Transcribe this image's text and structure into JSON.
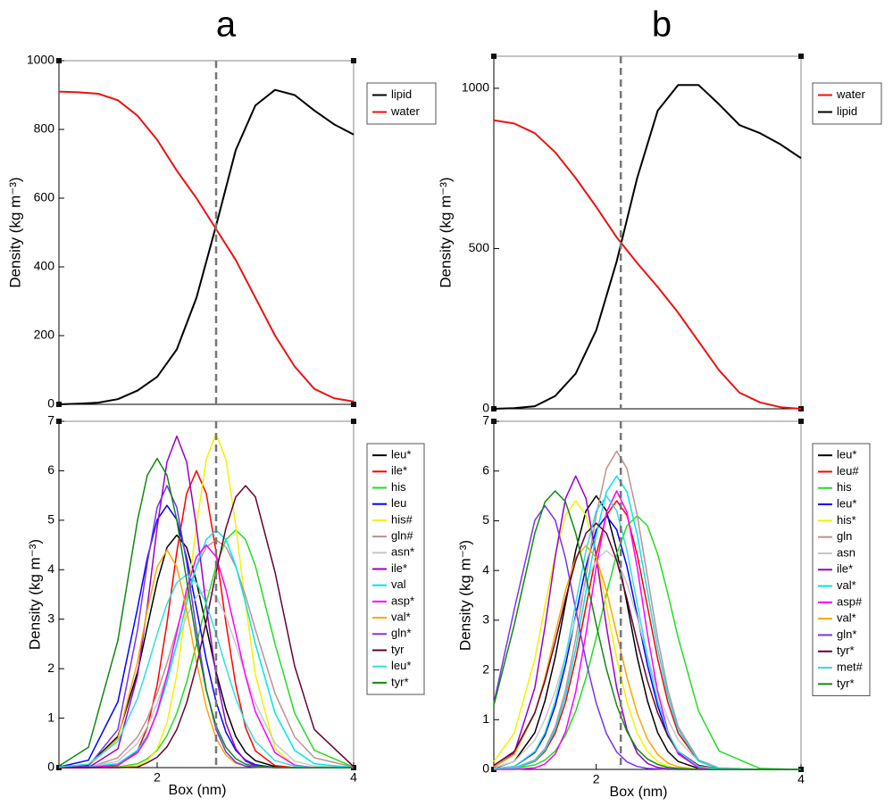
{
  "chart_data": [
    {
      "type": "line",
      "title": "a",
      "ylabel": "Density (kg m⁻³)",
      "xlim": [
        1,
        4
      ],
      "ylim": [
        0,
        1000
      ],
      "yticks": [
        0,
        200,
        400,
        600,
        800,
        1000
      ],
      "vline": 2.6,
      "x": [
        1.0,
        1.2,
        1.4,
        1.6,
        1.8,
        2.0,
        2.2,
        2.4,
        2.6,
        2.8,
        3.0,
        3.2,
        3.4,
        3.6,
        3.8,
        4.0
      ],
      "series": [
        {
          "name": "lipid",
          "color": "#000000",
          "values": [
            0,
            2,
            5,
            15,
            40,
            80,
            160,
            310,
            520,
            740,
            870,
            915,
            900,
            855,
            815,
            785
          ]
        },
        {
          "name": "water",
          "color": "#ee1111",
          "values": [
            910,
            908,
            904,
            885,
            840,
            770,
            680,
            600,
            510,
            420,
            310,
            200,
            110,
            45,
            18,
            8
          ]
        }
      ]
    },
    {
      "type": "line",
      "ylabel": "Density (kg m⁻³)",
      "xlabel": "Box (nm)",
      "xlim": [
        1,
        4
      ],
      "ylim": [
        0,
        7
      ],
      "yticks": [
        0,
        1,
        2,
        3,
        4,
        5,
        6,
        7
      ],
      "xticks": [
        2,
        4
      ],
      "vline": 2.6,
      "x": [
        1.0,
        1.3,
        1.6,
        1.8,
        1.9,
        2.0,
        2.1,
        2.2,
        2.3,
        2.4,
        2.5,
        2.6,
        2.7,
        2.8,
        2.9,
        3.0,
        3.2,
        3.4,
        3.6,
        4.0
      ],
      "series": [
        {
          "name": "leu*",
          "color": "#000000",
          "values": [
            0,
            0.05,
            0.63,
            1.93,
            2.85,
            3.76,
            4.45,
            4.7,
            4.45,
            3.76,
            2.85,
            1.93,
            1.18,
            0.63,
            0.31,
            0.14,
            0.02,
            0,
            0,
            0
          ]
        },
        {
          "name": "ile*",
          "color": "#ff0000",
          "values": [
            0,
            0,
            0.04,
            0.34,
            0.81,
            1.67,
            2.92,
            4.36,
            5.54,
            6.0,
            5.54,
            4.36,
            2.92,
            1.67,
            0.81,
            0.34,
            0.04,
            0,
            0,
            0
          ]
        },
        {
          "name": "his",
          "color": "#22dd22",
          "values": [
            0,
            0,
            0.01,
            0.08,
            0.18,
            0.35,
            0.65,
            1.1,
            1.73,
            2.5,
            3.33,
            4.08,
            4.61,
            4.8,
            4.61,
            4.08,
            2.5,
            1.1,
            0.35,
            0.01
          ]
        },
        {
          "name": "leu",
          "color": "#0000ff",
          "values": [
            0.01,
            0.15,
            1.33,
            3.22,
            4.24,
            5.01,
            5.3,
            5.01,
            4.24,
            3.22,
            2.18,
            1.33,
            0.72,
            0.35,
            0.15,
            0.06,
            0,
            0,
            0,
            0
          ]
        },
        {
          "name": "his#",
          "color": "#f2f200",
          "values": [
            0,
            0,
            0,
            0.04,
            0.14,
            0.38,
            0.91,
            1.88,
            3.29,
            4.9,
            6.23,
            6.75,
            6.23,
            4.9,
            3.29,
            1.88,
            0.38,
            0.04,
            0,
            0
          ]
        },
        {
          "name": "gln#",
          "color": "#c09090",
          "values": [
            0,
            0,
            0.2,
            0.62,
            0.99,
            1.5,
            2.11,
            2.79,
            3.47,
            4.06,
            4.46,
            4.6,
            4.46,
            4.06,
            3.47,
            2.79,
            1.5,
            0.62,
            0.2,
            0.01
          ]
        },
        {
          "name": "asn*",
          "color": "#c8c8c8",
          "values": [
            0,
            0.01,
            0.13,
            0.49,
            0.83,
            1.3,
            1.87,
            2.49,
            3.06,
            3.46,
            3.6,
            3.46,
            3.06,
            2.49,
            1.87,
            1.3,
            0.49,
            0.13,
            0.03,
            0
          ]
        },
        {
          "name": "ile*",
          "color": "#9900cc",
          "values": [
            0,
            0,
            0.38,
            1.86,
            3.26,
            4.86,
            6.18,
            6.7,
            6.18,
            4.86,
            3.26,
            1.86,
            0.9,
            0.38,
            0.13,
            0.04,
            0,
            0,
            0,
            0
          ]
        },
        {
          "name": "val",
          "color": "#00e5ee",
          "values": [
            0,
            0.01,
            0.08,
            0.35,
            0.65,
            1.1,
            1.73,
            2.5,
            3.33,
            4.08,
            4.61,
            4.8,
            4.61,
            4.08,
            3.33,
            2.5,
            1.1,
            0.35,
            0.08,
            0
          ]
        },
        {
          "name": "asp*",
          "color": "#ff00ff",
          "values": [
            0,
            0,
            0.05,
            0.3,
            0.61,
            1.13,
            1.85,
            2.73,
            3.6,
            4.26,
            4.5,
            4.26,
            3.6,
            2.73,
            1.85,
            1.13,
            0.3,
            0.05,
            0,
            0
          ]
        },
        {
          "name": "val*",
          "color": "#ffa500",
          "values": [
            0,
            0.03,
            0.59,
            2.14,
            3.19,
            4.06,
            4.4,
            4.06,
            3.19,
            2.14,
            1.22,
            0.59,
            0.25,
            0.09,
            0.03,
            0.01,
            0,
            0,
            0,
            0
          ]
        },
        {
          "name": "gln*",
          "color": "#7733ee",
          "values": [
            0,
            0.03,
            0.77,
            2.78,
            4.14,
            5.26,
            5.7,
            5.26,
            4.14,
            2.78,
            1.58,
            0.77,
            0.32,
            0.11,
            0.03,
            0.01,
            0,
            0,
            0,
            0
          ]
        },
        {
          "name": "tyr",
          "color": "#660033",
          "values": [
            0,
            0,
            0,
            0.01,
            0.1,
            0.21,
            0.42,
            0.77,
            1.31,
            2.05,
            2.96,
            3.95,
            4.84,
            5.47,
            5.7,
            5.47,
            3.95,
            2.05,
            0.77,
            0.02
          ]
        },
        {
          "name": "leu*",
          "color": "#33dddd",
          "values": [
            0.01,
            0.07,
            0.53,
            1.4,
            2.03,
            2.7,
            3.31,
            3.74,
            3.9,
            3.74,
            3.31,
            2.7,
            2.03,
            1.4,
            0.9,
            0.53,
            0.14,
            0.03,
            0,
            0
          ]
        },
        {
          "name": "tyr*",
          "color": "#118811",
          "values": [
            0.03,
            0.41,
            2.57,
            5.0,
            5.91,
            6.25,
            5.91,
            5.0,
            3.79,
            2.57,
            1.56,
            0.84,
            0.41,
            0.18,
            0.07,
            0.03,
            0,
            0,
            0,
            0
          ]
        }
      ]
    },
    {
      "type": "line",
      "title": "b",
      "ylabel": "Density (kg m⁻³)",
      "xlim": [
        1,
        4
      ],
      "ylim": [
        0,
        1100
      ],
      "yticks": [
        0,
        500,
        1000
      ],
      "vline": 2.24,
      "x": [
        1.0,
        1.2,
        1.4,
        1.6,
        1.8,
        2.0,
        2.2,
        2.4,
        2.6,
        2.8,
        3.0,
        3.2,
        3.4,
        3.6,
        3.8,
        4.0
      ],
      "series": [
        {
          "name": "water",
          "color": "#ee1111",
          "values": [
            900,
            890,
            860,
            800,
            720,
            630,
            535,
            455,
            380,
            300,
            210,
            120,
            50,
            20,
            5,
            0
          ]
        },
        {
          "name": "lipid",
          "color": "#000000",
          "values": [
            0,
            2,
            8,
            40,
            110,
            245,
            460,
            720,
            930,
            1010,
            1010,
            950,
            885,
            860,
            825,
            782
          ]
        }
      ]
    },
    {
      "type": "line",
      "ylabel": "Density (kg m⁻³)",
      "xlabel": "Box (nm)",
      "xlim": [
        1,
        4
      ],
      "ylim": [
        0,
        7
      ],
      "yticks": [
        0,
        1,
        2,
        3,
        4,
        5,
        6,
        7
      ],
      "xticks": [
        2,
        4
      ],
      "vline": 2.24,
      "x": [
        1.0,
        1.2,
        1.4,
        1.5,
        1.6,
        1.7,
        1.8,
        1.9,
        2.0,
        2.1,
        2.2,
        2.3,
        2.4,
        2.5,
        2.6,
        2.7,
        2.8,
        3.0,
        3.2,
        3.6,
        4.0
      ],
      "series": [
        {
          "name": "leu*",
          "color": "#000000",
          "values": [
            0.02,
            0.16,
            0.74,
            1.38,
            2.26,
            3.34,
            4.4,
            5.2,
            5.5,
            5.2,
            4.4,
            3.34,
            2.26,
            1.38,
            0.74,
            0.36,
            0.16,
            0.02,
            0,
            0,
            0
          ]
        },
        {
          "name": "leu#",
          "color": "#ff0000",
          "values": [
            0,
            0.02,
            0.16,
            0.36,
            0.73,
            1.35,
            2.22,
            3.28,
            4.32,
            5.11,
            5.4,
            5.11,
            4.32,
            3.28,
            2.22,
            1.35,
            0.73,
            0.16,
            0.02,
            0,
            0
          ]
        },
        {
          "name": "his",
          "color": "#22dd22",
          "values": [
            0,
            0.02,
            0.09,
            0.19,
            0.37,
            0.69,
            1.17,
            1.84,
            2.65,
            3.53,
            4.33,
            4.9,
            5.1,
            4.9,
            4.33,
            3.53,
            2.65,
            1.17,
            0.37,
            0.02,
            0
          ]
        },
        {
          "name": "leu*",
          "color": "#0000ff",
          "values": [
            0.01,
            0.06,
            0.34,
            0.69,
            1.28,
            2.1,
            3.1,
            4.08,
            4.82,
            5.1,
            4.82,
            4.08,
            3.1,
            2.1,
            1.28,
            0.69,
            0.34,
            0.06,
            0.01,
            0,
            0
          ]
        },
        {
          "name": "his*",
          "color": "#f2f200",
          "values": [
            0.16,
            0.73,
            2.22,
            3.28,
            4.32,
            5.11,
            5.4,
            5.11,
            4.32,
            3.28,
            2.22,
            1.35,
            0.73,
            0.36,
            0.16,
            0.06,
            0.02,
            0,
            0,
            0,
            0
          ]
        },
        {
          "name": "gln",
          "color": "#c09090",
          "values": [
            0,
            0.03,
            0.19,
            0.42,
            0.86,
            1.6,
            2.63,
            3.88,
            5.12,
            6.05,
            6.4,
            6.05,
            5.12,
            3.88,
            2.63,
            1.6,
            0.86,
            0.19,
            0.03,
            0,
            0
          ]
        },
        {
          "name": "asn",
          "color": "#c8c8c8",
          "values": [
            0.03,
            0.16,
            0.59,
            1.01,
            1.58,
            2.29,
            3.05,
            3.74,
            4.22,
            4.4,
            4.22,
            3.74,
            3.05,
            2.29,
            1.58,
            1.01,
            0.59,
            0.16,
            0.03,
            0,
            0
          ]
        },
        {
          "name": "ile*",
          "color": "#9900cc",
          "values": [
            0.04,
            0.33,
            1.64,
            2.87,
            4.28,
            5.45,
            5.9,
            5.45,
            4.28,
            2.87,
            1.64,
            0.8,
            0.33,
            0.12,
            0.04,
            0.01,
            0,
            0,
            0,
            0,
            0
          ]
        },
        {
          "name": "val*",
          "color": "#00e5ee",
          "values": [
            0,
            0.02,
            0.17,
            0.39,
            0.8,
            1.48,
            2.42,
            3.58,
            4.72,
            5.58,
            5.9,
            5.58,
            4.72,
            3.58,
            2.42,
            1.48,
            0.8,
            0.17,
            0.02,
            0,
            0
          ]
        },
        {
          "name": "asp#",
          "color": "#ff00ff",
          "values": [
            0,
            0,
            0.03,
            0.11,
            0.31,
            0.76,
            1.56,
            2.73,
            4.07,
            5.17,
            5.6,
            5.17,
            4.07,
            2.73,
            1.56,
            0.76,
            0.31,
            0.03,
            0,
            0,
            0
          ]
        },
        {
          "name": "val*",
          "color": "#ffa500",
          "values": [
            0.05,
            0.3,
            1.13,
            1.85,
            2.73,
            3.6,
            4.26,
            4.5,
            4.26,
            3.6,
            2.73,
            1.85,
            1.13,
            0.61,
            0.3,
            0.13,
            0.05,
            0,
            0,
            0,
            0
          ]
        },
        {
          "name": "gln*",
          "color": "#7733ee",
          "values": [
            1.33,
            3.22,
            5.01,
            5.3,
            5.01,
            4.24,
            3.22,
            2.18,
            1.33,
            0.72,
            0.35,
            0.15,
            0.06,
            0.02,
            0.01,
            0,
            0,
            0,
            0,
            0,
            0
          ]
        },
        {
          "name": "tyr*",
          "color": "#660033",
          "values": [
            0.08,
            0.36,
            1.14,
            1.78,
            2.57,
            3.43,
            4.2,
            4.75,
            4.95,
            4.75,
            4.2,
            3.43,
            2.57,
            1.78,
            1.14,
            0.67,
            0.36,
            0.08,
            0.01,
            0,
            0
          ]
        },
        {
          "name": "met#",
          "color": "#33dddd",
          "values": [
            0.01,
            0.06,
            0.36,
            0.74,
            1.38,
            2.26,
            3.34,
            4.4,
            5.2,
            5.5,
            5.2,
            4.4,
            3.34,
            2.26,
            1.38,
            0.74,
            0.36,
            0.06,
            0.01,
            0,
            0
          ]
        },
        {
          "name": "tyr*",
          "color": "#118811",
          "values": [
            1.29,
            2.91,
            4.75,
            5.38,
            5.6,
            5.38,
            4.75,
            3.88,
            2.91,
            2.02,
            1.29,
            0.76,
            0.41,
            0.21,
            0.1,
            0.04,
            0.02,
            0,
            0,
            0,
            0
          ]
        }
      ]
    }
  ]
}
